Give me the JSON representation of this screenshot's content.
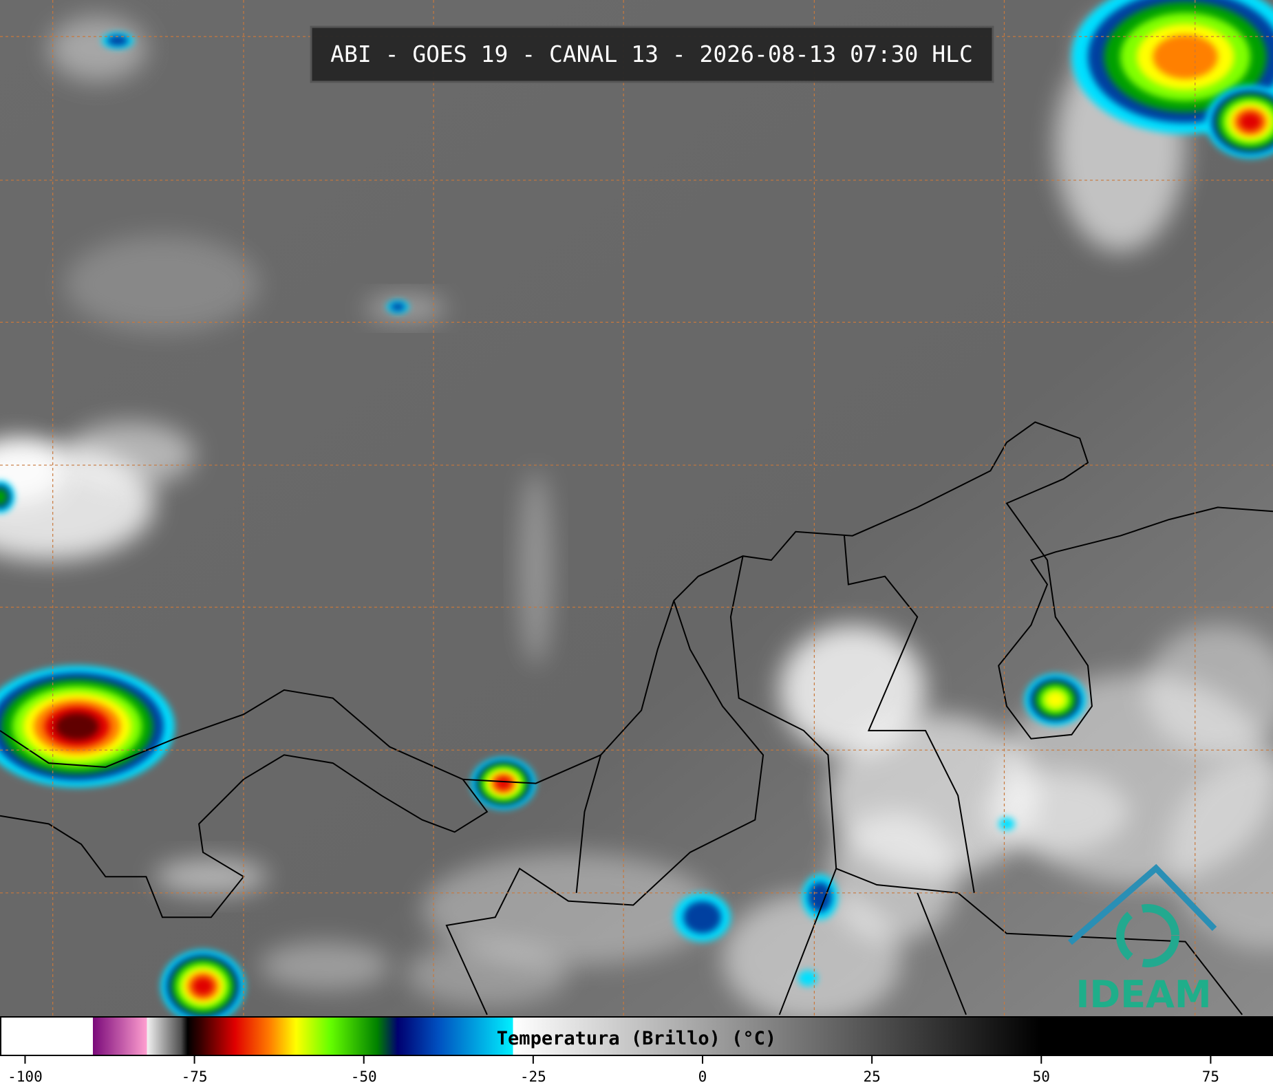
{
  "header": {
    "title": "ABI - GOES 19 - CANAL 13 - 2026-08-13 07:30 HLC"
  },
  "colorbar": {
    "label": "Temperatura (Brillo) (°C)",
    "lim": [
      -103.6,
      84.1
    ],
    "ticks": [
      -100,
      -75,
      -50,
      -25,
      0,
      25,
      50,
      75
    ],
    "stops": [
      {
        "value": -90,
        "color": "#ffffff"
      },
      {
        "value": -90,
        "color": "#7a0a7a"
      },
      {
        "value": -82,
        "color": "#ff9fd0"
      },
      {
        "value": -82,
        "color": "#f2f2f2"
      },
      {
        "value": -77,
        "color": "#505050"
      },
      {
        "value": -76,
        "color": "#000000"
      },
      {
        "value": -74,
        "color": "#3a0000"
      },
      {
        "value": -69,
        "color": "#e00000"
      },
      {
        "value": -64,
        "color": "#ff7a00"
      },
      {
        "value": -60,
        "color": "#ffff00"
      },
      {
        "value": -55,
        "color": "#66ff00"
      },
      {
        "value": -48,
        "color": "#008000"
      },
      {
        "value": -45,
        "color": "#000070"
      },
      {
        "value": -39,
        "color": "#0050c0"
      },
      {
        "value": -28,
        "color": "#00f0ff"
      },
      {
        "value": -28,
        "color": "#ffffff"
      },
      {
        "value": 50,
        "color": "#000000"
      }
    ]
  },
  "logo": {
    "text": "IDEAM"
  }
}
